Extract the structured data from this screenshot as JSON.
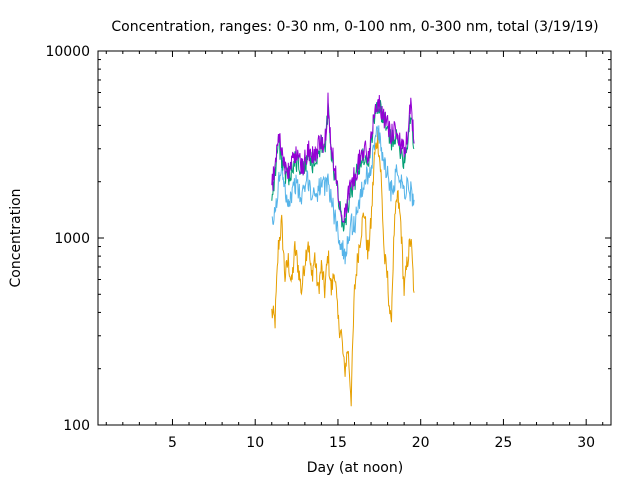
{
  "chart_data": {
    "type": "line",
    "title": "Concentration, ranges: 0-30 nm, 0-100 nm, 0-300 nm, total (3/19/19)",
    "xlabel": "Day (at noon)",
    "ylabel": "Concentration",
    "xlim": [
      0.5,
      31.5
    ],
    "ylim": [
      100,
      10000
    ],
    "yscale": "log",
    "x_ticks": [
      5,
      10,
      15,
      20,
      25,
      30
    ],
    "x_tick_labels": [
      "5",
      "10",
      "15",
      "20",
      "25",
      "30"
    ],
    "y_ticks": [
      100,
      1000,
      10000
    ],
    "y_tick_labels": [
      "100",
      "1000",
      "10000"
    ],
    "grid": false,
    "legend": "none",
    "series": [
      {
        "name": "0-30 nm",
        "color": "#e69f00",
        "points": [
          [
            11.0,
            400
          ],
          [
            11.2,
            360
          ],
          [
            11.4,
            900
          ],
          [
            11.6,
            1200
          ],
          [
            11.8,
            620
          ],
          [
            12.0,
            760
          ],
          [
            12.2,
            560
          ],
          [
            12.4,
            880
          ],
          [
            12.6,
            700
          ],
          [
            12.8,
            520
          ],
          [
            13.0,
            760
          ],
          [
            13.2,
            980
          ],
          [
            13.4,
            610
          ],
          [
            13.6,
            800
          ],
          [
            13.8,
            520
          ],
          [
            14.0,
            700
          ],
          [
            14.2,
            520
          ],
          [
            14.4,
            820
          ],
          [
            14.6,
            520
          ],
          [
            14.8,
            680
          ],
          [
            15.0,
            360
          ],
          [
            15.2,
            310
          ],
          [
            15.4,
            190
          ],
          [
            15.6,
            260
          ],
          [
            15.8,
            140
          ],
          [
            16.0,
            520
          ],
          [
            16.2,
            800
          ],
          [
            16.4,
            1100
          ],
          [
            16.6,
            1400
          ],
          [
            16.8,
            800
          ],
          [
            17.0,
            1200
          ],
          [
            17.2,
            2700
          ],
          [
            17.4,
            3500
          ],
          [
            17.6,
            2200
          ],
          [
            17.8,
            800
          ],
          [
            18.0,
            600
          ],
          [
            18.2,
            330
          ],
          [
            18.4,
            1100
          ],
          [
            18.6,
            1700
          ],
          [
            18.8,
            1200
          ],
          [
            19.0,
            520
          ],
          [
            19.2,
            760
          ],
          [
            19.4,
            1000
          ],
          [
            19.6,
            510
          ]
        ]
      },
      {
        "name": "0-100 nm",
        "color": "#56b4e9",
        "points": [
          [
            11.0,
            1150
          ],
          [
            11.2,
            1350
          ],
          [
            11.4,
            1900
          ],
          [
            11.6,
            2500
          ],
          [
            11.8,
            1900
          ],
          [
            12.0,
            1550
          ],
          [
            12.2,
            1700
          ],
          [
            12.4,
            2000
          ],
          [
            12.6,
            1800
          ],
          [
            12.8,
            1600
          ],
          [
            13.0,
            1850
          ],
          [
            13.2,
            2100
          ],
          [
            13.4,
            1700
          ],
          [
            13.6,
            1750
          ],
          [
            13.8,
            1800
          ],
          [
            14.0,
            1950
          ],
          [
            14.2,
            1800
          ],
          [
            14.4,
            2050
          ],
          [
            14.6,
            1600
          ],
          [
            14.8,
            1300
          ],
          [
            15.0,
            1100
          ],
          [
            15.2,
            900
          ],
          [
            15.4,
            800
          ],
          [
            15.6,
            1000
          ],
          [
            15.8,
            1200
          ],
          [
            16.0,
            1150
          ],
          [
            16.2,
            1500
          ],
          [
            16.4,
            1700
          ],
          [
            16.6,
            2000
          ],
          [
            16.8,
            2200
          ],
          [
            17.0,
            2400
          ],
          [
            17.2,
            3200
          ],
          [
            17.4,
            3800
          ],
          [
            17.6,
            3000
          ],
          [
            17.8,
            2600
          ],
          [
            18.0,
            2200
          ],
          [
            18.2,
            1800
          ],
          [
            18.4,
            2000
          ],
          [
            18.6,
            2300
          ],
          [
            18.8,
            2100
          ],
          [
            19.0,
            1800
          ],
          [
            19.2,
            1900
          ],
          [
            19.4,
            1750
          ],
          [
            19.6,
            1600
          ]
        ]
      },
      {
        "name": "0-300 nm",
        "color": "#009e73",
        "points": [
          [
            11.0,
            1700
          ],
          [
            11.2,
            2200
          ],
          [
            11.4,
            3300
          ],
          [
            11.6,
            2700
          ],
          [
            11.8,
            2200
          ],
          [
            12.0,
            2000
          ],
          [
            12.2,
            2400
          ],
          [
            12.4,
            2600
          ],
          [
            12.6,
            2500
          ],
          [
            12.8,
            2200
          ],
          [
            13.0,
            2400
          ],
          [
            13.2,
            2800
          ],
          [
            13.4,
            2500
          ],
          [
            13.6,
            2500
          ],
          [
            13.8,
            2900
          ],
          [
            14.0,
            3100
          ],
          [
            14.2,
            2900
          ],
          [
            14.4,
            4800
          ],
          [
            14.6,
            2800
          ],
          [
            14.8,
            2200
          ],
          [
            15.0,
            1700
          ],
          [
            15.2,
            1300
          ],
          [
            15.4,
            1200
          ],
          [
            15.6,
            1500
          ],
          [
            15.8,
            1800
          ],
          [
            16.0,
            2000
          ],
          [
            16.2,
            2300
          ],
          [
            16.4,
            2600
          ],
          [
            16.6,
            2800
          ],
          [
            16.8,
            2500
          ],
          [
            17.0,
            3100
          ],
          [
            17.2,
            4600
          ],
          [
            17.4,
            5200
          ],
          [
            17.6,
            4700
          ],
          [
            17.8,
            4100
          ],
          [
            18.0,
            3800
          ],
          [
            18.2,
            3300
          ],
          [
            18.4,
            3600
          ],
          [
            18.6,
            3200
          ],
          [
            18.8,
            3000
          ],
          [
            19.0,
            2600
          ],
          [
            19.2,
            3300
          ],
          [
            19.4,
            4800
          ],
          [
            19.6,
            3000
          ]
        ]
      },
      {
        "name": "total",
        "color": "#9400d3",
        "points": [
          [
            11.0,
            1900
          ],
          [
            11.2,
            2400
          ],
          [
            11.4,
            3600
          ],
          [
            11.6,
            3000
          ],
          [
            11.8,
            2400
          ],
          [
            12.0,
            2200
          ],
          [
            12.2,
            2600
          ],
          [
            12.4,
            2800
          ],
          [
            12.6,
            2700
          ],
          [
            12.8,
            2400
          ],
          [
            13.0,
            2600
          ],
          [
            13.2,
            3000
          ],
          [
            13.4,
            2700
          ],
          [
            13.6,
            2700
          ],
          [
            13.8,
            3100
          ],
          [
            14.0,
            3300
          ],
          [
            14.2,
            3100
          ],
          [
            14.4,
            5300
          ],
          [
            14.6,
            3000
          ],
          [
            14.8,
            2400
          ],
          [
            15.0,
            1850
          ],
          [
            15.2,
            1450
          ],
          [
            15.4,
            1300
          ],
          [
            15.6,
            1650
          ],
          [
            15.8,
            1950
          ],
          [
            16.0,
            2150
          ],
          [
            16.2,
            2450
          ],
          [
            16.4,
            2800
          ],
          [
            16.6,
            3000
          ],
          [
            16.8,
            2700
          ],
          [
            17.0,
            3300
          ],
          [
            17.2,
            4900
          ],
          [
            17.4,
            5500
          ],
          [
            17.6,
            5000
          ],
          [
            17.8,
            4400
          ],
          [
            18.0,
            4000
          ],
          [
            18.2,
            3500
          ],
          [
            18.4,
            3800
          ],
          [
            18.6,
            3400
          ],
          [
            18.8,
            3200
          ],
          [
            19.0,
            2800
          ],
          [
            19.2,
            3500
          ],
          [
            19.4,
            5200
          ],
          [
            19.6,
            3200
          ]
        ]
      }
    ]
  }
}
